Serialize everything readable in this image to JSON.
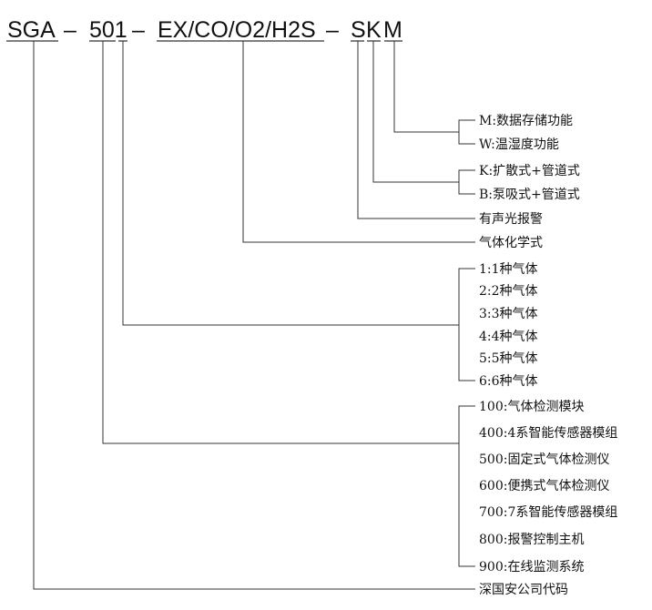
{
  "header": {
    "parts": [
      "SGA",
      "–",
      "501",
      "–",
      "EX/CO/O2/H2S",
      "–",
      "S",
      "K",
      "M"
    ]
  },
  "labels": {
    "m": "M:数据存储功能",
    "w": "W:温湿度功能",
    "k": "K:扩散式+管道式",
    "b": "B:泵吸式+管道式",
    "s": "有声光报警",
    "formula": "气体化学式",
    "gas_count": [
      "1:1种气体",
      "2:2种气体",
      "3:3种气体",
      "4:4种气体",
      "5:5种气体",
      "6:6种气体"
    ],
    "models": [
      "100:气体检测模块",
      "400:4系智能传感器模组",
      "500:固定式气体检测仪",
      "600:便携式气体检测仪",
      "700:7系智能传感器模组",
      "800:报警控制主机",
      "900:在线监测系统"
    ],
    "company": "深国安公司代码"
  }
}
